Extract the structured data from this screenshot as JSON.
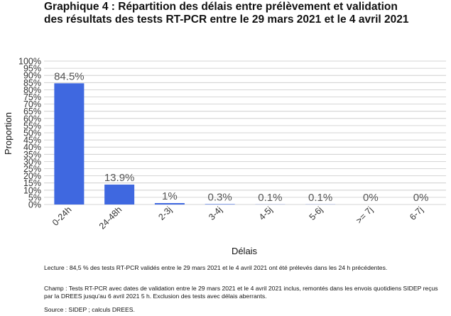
{
  "title": {
    "line1": "Graphique 4 : Répartition des délais entre prélèvement et validation",
    "line2": "des résultats des tests RT-PCR entre le 29 mars 2021 et le 4 avril 2021"
  },
  "chart_data": {
    "type": "bar",
    "categories": [
      "0-24h",
      "24-48h",
      "2-3j",
      "3-4j",
      "4-5j",
      "5-6j",
      ">= 7j",
      "6-7j"
    ],
    "values": [
      84.5,
      13.9,
      1,
      0.3,
      0.1,
      0.1,
      0,
      0
    ],
    "labels": [
      "84.5%",
      "13.9%",
      "1%",
      "0.3%",
      "0.1%",
      "0.1%",
      "0%",
      "0%"
    ],
    "xlabel": "Délais",
    "ylabel": "Proportion",
    "ylim": [
      0,
      100
    ],
    "yticks": [
      0,
      5,
      10,
      15,
      20,
      25,
      30,
      35,
      40,
      45,
      50,
      55,
      60,
      65,
      70,
      75,
      80,
      85,
      90,
      95,
      100
    ],
    "ytick_labels": [
      "0%",
      "5%",
      "10%",
      "15%",
      "20%",
      "25%",
      "30%",
      "35%",
      "40%",
      "45%",
      "50%",
      "55%",
      "60%",
      "65%",
      "70%",
      "75%",
      "80%",
      "85%",
      "90%",
      "95%",
      "100%"
    ],
    "grid": true,
    "colors": {
      "bar": "#3f68e0",
      "grid": "#c8c8c8",
      "label": "#555555",
      "axis_text": "#333333"
    }
  },
  "notes": {
    "lecture": "Lecture : 84,5 % des tests RT-PCR validés entre le 29 mars 2021 et le 4 avril 2021 ont été prélevés dans les 24 h précédentes.",
    "champ": "Champ : Tests RT-PCR avec dates de validation entre le 29 mars 2021 et le 4 avril 2021 inclus, remontés dans les envois quotidiens SIDEP reçus par la DREES jusqu'au 6 avril 2021 5 h. Exclusion des tests avec délais aberrants.",
    "source": "Source : SIDEP ; calculs DREES."
  }
}
